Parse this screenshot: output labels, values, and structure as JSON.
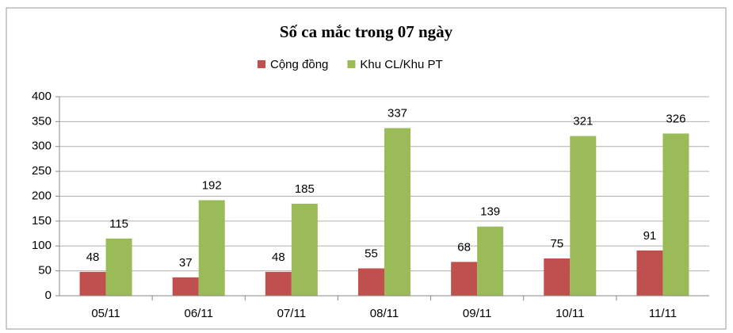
{
  "chart_data": {
    "type": "bar",
    "title": "Số ca mắc trong 07 ngày",
    "categories": [
      "05/11",
      "06/11",
      "07/11",
      "08/11",
      "09/11",
      "10/11",
      "11/11"
    ],
    "series": [
      {
        "name": "Cộng đồng",
        "color": "#c0504d",
        "values": [
          48,
          37,
          48,
          55,
          68,
          75,
          91
        ]
      },
      {
        "name": "Khu CL/Khu PT",
        "color": "#9bbb59",
        "values": [
          115,
          192,
          185,
          337,
          139,
          321,
          326
        ]
      }
    ],
    "ylim": [
      0,
      400
    ],
    "yticks": [
      0,
      50,
      100,
      150,
      200,
      250,
      300,
      350,
      400
    ],
    "grid": true,
    "legend": "top"
  }
}
